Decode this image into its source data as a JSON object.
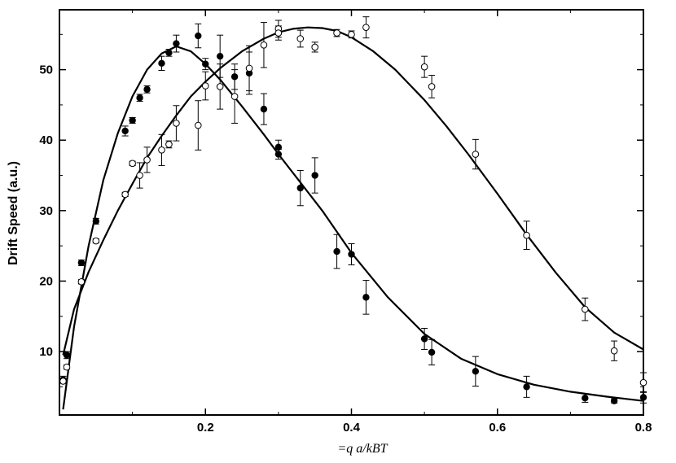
{
  "chart_data": {
    "type": "scatter",
    "title": "",
    "xlabel": "=q  a/kBT",
    "ylabel": "Drift Speed (a.u.)",
    "xlim": [
      0.0,
      0.8
    ],
    "ylim": [
      1.0,
      58.5
    ],
    "x_ticks": [
      0.2,
      0.4,
      0.6,
      0.8
    ],
    "x_tick_labels": [
      "0.2",
      "0.4",
      "0.6",
      "0.8"
    ],
    "y_ticks": [
      10,
      20,
      30,
      40,
      50
    ],
    "y_tick_labels": [
      "10",
      "20",
      "30",
      "40",
      "50"
    ],
    "grid": false,
    "legend": "none",
    "series": [
      {
        "marker": "filled-circle",
        "color": "#000000",
        "points": [
          {
            "x": 0.005,
            "y": 6.0,
            "err": 0.5
          },
          {
            "x": 0.01,
            "y": 9.5,
            "err": 0.5
          },
          {
            "x": 0.03,
            "y": 22.6,
            "err": 0.4
          },
          {
            "x": 0.05,
            "y": 28.5,
            "err": 0.4
          },
          {
            "x": 0.09,
            "y": 41.3,
            "err": 0.7
          },
          {
            "x": 0.1,
            "y": 42.8,
            "err": 0.4
          },
          {
            "x": 0.11,
            "y": 46.0,
            "err": 0.5
          },
          {
            "x": 0.12,
            "y": 47.2,
            "err": 0.5
          },
          {
            "x": 0.14,
            "y": 50.9,
            "err": 1.0
          },
          {
            "x": 0.15,
            "y": 52.4,
            "err": 0.5
          },
          {
            "x": 0.16,
            "y": 53.7,
            "err": 1.2
          },
          {
            "x": 0.19,
            "y": 54.8,
            "err": 1.7
          },
          {
            "x": 0.2,
            "y": 50.8,
            "err": 0.8
          },
          {
            "x": 0.22,
            "y": 51.9,
            "err": 3.0
          },
          {
            "x": 0.24,
            "y": 49.0,
            "err": 1.8
          },
          {
            "x": 0.26,
            "y": 49.5,
            "err": 3.0
          },
          {
            "x": 0.28,
            "y": 44.4,
            "err": 2.2
          },
          {
            "x": 0.3,
            "y": 39.0,
            "err": 1.0
          },
          {
            "x": 0.3,
            "y": 38.0,
            "err": 0.7
          },
          {
            "x": 0.33,
            "y": 33.2,
            "err": 2.5
          },
          {
            "x": 0.35,
            "y": 35.0,
            "err": 2.5
          },
          {
            "x": 0.38,
            "y": 24.2,
            "err": 2.4
          },
          {
            "x": 0.4,
            "y": 23.8,
            "err": 1.5
          },
          {
            "x": 0.42,
            "y": 17.7,
            "err": 2.4
          },
          {
            "x": 0.5,
            "y": 11.8,
            "err": 1.5
          },
          {
            "x": 0.51,
            "y": 9.9,
            "err": 1.8
          },
          {
            "x": 0.57,
            "y": 7.2,
            "err": 2.1
          },
          {
            "x": 0.64,
            "y": 5.0,
            "err": 1.5
          },
          {
            "x": 0.72,
            "y": 3.4,
            "err": 0.6
          },
          {
            "x": 0.76,
            "y": 3.0,
            "err": 0.3
          },
          {
            "x": 0.8,
            "y": 3.5,
            "err": 0.8
          }
        ],
        "fit": [
          {
            "x": 0.005,
            "y": 1.8
          },
          {
            "x": 0.02,
            "y": 13.5
          },
          {
            "x": 0.04,
            "y": 25.0
          },
          {
            "x": 0.06,
            "y": 34.3
          },
          {
            "x": 0.08,
            "y": 41.0
          },
          {
            "x": 0.1,
            "y": 46.2
          },
          {
            "x": 0.12,
            "y": 50.0
          },
          {
            "x": 0.14,
            "y": 52.3
          },
          {
            "x": 0.16,
            "y": 53.3
          },
          {
            "x": 0.18,
            "y": 52.6
          },
          {
            "x": 0.2,
            "y": 50.8
          },
          {
            "x": 0.22,
            "y": 48.6
          },
          {
            "x": 0.25,
            "y": 44.8
          },
          {
            "x": 0.28,
            "y": 40.8
          },
          {
            "x": 0.3,
            "y": 38.0
          },
          {
            "x": 0.33,
            "y": 34.0
          },
          {
            "x": 0.36,
            "y": 30.0
          },
          {
            "x": 0.4,
            "y": 24.0
          },
          {
            "x": 0.45,
            "y": 17.7
          },
          {
            "x": 0.5,
            "y": 12.5
          },
          {
            "x": 0.55,
            "y": 9.0
          },
          {
            "x": 0.6,
            "y": 6.8
          },
          {
            "x": 0.65,
            "y": 5.3
          },
          {
            "x": 0.7,
            "y": 4.3
          },
          {
            "x": 0.75,
            "y": 3.6
          },
          {
            "x": 0.8,
            "y": 3.0
          }
        ]
      },
      {
        "marker": "open-circle",
        "color": "#000000",
        "points": [
          {
            "x": 0.005,
            "y": 5.8,
            "err": 0.3
          },
          {
            "x": 0.01,
            "y": 7.8,
            "err": 0.3
          },
          {
            "x": 0.03,
            "y": 19.9,
            "err": 0.3
          },
          {
            "x": 0.05,
            "y": 25.7,
            "err": 0.3
          },
          {
            "x": 0.09,
            "y": 32.3,
            "err": 0.3
          },
          {
            "x": 0.1,
            "y": 36.7,
            "err": 0.3
          },
          {
            "x": 0.11,
            "y": 35.0,
            "err": 1.8
          },
          {
            "x": 0.12,
            "y": 37.2,
            "err": 1.8
          },
          {
            "x": 0.14,
            "y": 38.6,
            "err": 2.2
          },
          {
            "x": 0.15,
            "y": 39.4,
            "err": 0.5
          },
          {
            "x": 0.16,
            "y": 42.4,
            "err": 2.5
          },
          {
            "x": 0.19,
            "y": 42.1,
            "err": 3.5
          },
          {
            "x": 0.2,
            "y": 47.7,
            "err": 2.0
          },
          {
            "x": 0.22,
            "y": 47.6,
            "err": 3.2
          },
          {
            "x": 0.24,
            "y": 46.2,
            "err": 3.8
          },
          {
            "x": 0.26,
            "y": 50.2,
            "err": 3.2
          },
          {
            "x": 0.28,
            "y": 53.5,
            "err": 3.2
          },
          {
            "x": 0.3,
            "y": 55.8,
            "err": 1.2
          },
          {
            "x": 0.3,
            "y": 55.2,
            "err": 1.0
          },
          {
            "x": 0.33,
            "y": 54.4,
            "err": 1.2
          },
          {
            "x": 0.35,
            "y": 53.2,
            "err": 0.7
          },
          {
            "x": 0.38,
            "y": 55.2,
            "err": 0.5
          },
          {
            "x": 0.4,
            "y": 55.0,
            "err": 0.5
          },
          {
            "x": 0.42,
            "y": 56.0,
            "err": 1.5
          },
          {
            "x": 0.5,
            "y": 50.4,
            "err": 1.5
          },
          {
            "x": 0.51,
            "y": 47.6,
            "err": 1.6
          },
          {
            "x": 0.57,
            "y": 38.0,
            "err": 2.1
          },
          {
            "x": 0.64,
            "y": 26.5,
            "err": 2.0
          },
          {
            "x": 0.72,
            "y": 16.0,
            "err": 1.6
          },
          {
            "x": 0.76,
            "y": 10.1,
            "err": 1.4
          },
          {
            "x": 0.8,
            "y": 5.6,
            "err": 1.4
          }
        ],
        "fit": [
          {
            "x": 0.005,
            "y": 9.5
          },
          {
            "x": 0.02,
            "y": 16.0
          },
          {
            "x": 0.04,
            "y": 21.3
          },
          {
            "x": 0.06,
            "y": 25.8
          },
          {
            "x": 0.08,
            "y": 30.0
          },
          {
            "x": 0.1,
            "y": 33.8
          },
          {
            "x": 0.12,
            "y": 37.5
          },
          {
            "x": 0.14,
            "y": 40.6
          },
          {
            "x": 0.16,
            "y": 43.5
          },
          {
            "x": 0.18,
            "y": 46.2
          },
          {
            "x": 0.2,
            "y": 48.3
          },
          {
            "x": 0.22,
            "y": 50.2
          },
          {
            "x": 0.25,
            "y": 52.6
          },
          {
            "x": 0.28,
            "y": 54.4
          },
          {
            "x": 0.3,
            "y": 55.3
          },
          {
            "x": 0.32,
            "y": 55.8
          },
          {
            "x": 0.34,
            "y": 56.0
          },
          {
            "x": 0.36,
            "y": 55.9
          },
          {
            "x": 0.38,
            "y": 55.5
          },
          {
            "x": 0.4,
            "y": 54.6
          },
          {
            "x": 0.43,
            "y": 52.6
          },
          {
            "x": 0.46,
            "y": 50.0
          },
          {
            "x": 0.5,
            "y": 45.7
          },
          {
            "x": 0.53,
            "y": 42.0
          },
          {
            "x": 0.56,
            "y": 38.0
          },
          {
            "x": 0.6,
            "y": 32.4
          },
          {
            "x": 0.64,
            "y": 26.6
          },
          {
            "x": 0.68,
            "y": 21.2
          },
          {
            "x": 0.72,
            "y": 16.3
          },
          {
            "x": 0.76,
            "y": 12.7
          },
          {
            "x": 0.8,
            "y": 10.3
          }
        ]
      }
    ]
  }
}
